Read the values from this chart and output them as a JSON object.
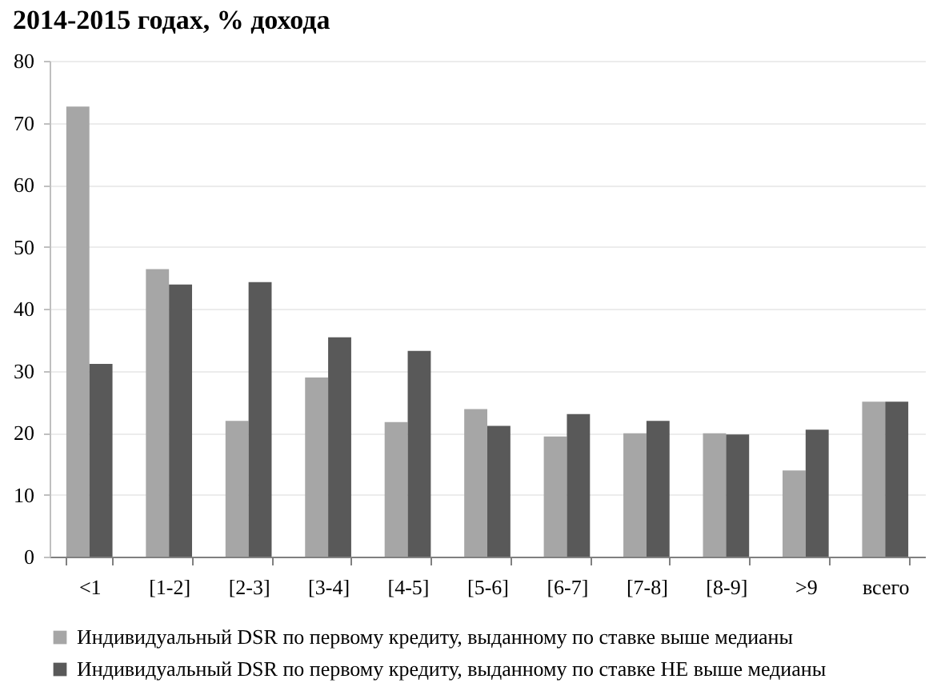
{
  "chart_data": {
    "type": "bar",
    "title": "2014-2015 годах, % дохода",
    "categories": [
      "<1",
      "[1-2]",
      "[2-3]",
      "[3-4]",
      "[4-5]",
      "[5-6]",
      "[6-7]",
      "[7-8]",
      "[8-9]",
      ">9",
      "всего"
    ],
    "series": [
      {
        "name": "Индивидуальный DSR по первому кредиту, выданному по ставке выше медианы",
        "color": "#a6a6a6",
        "values": [
          72.6,
          46.4,
          21.9,
          28.9,
          21.7,
          23.8,
          19.4,
          19.9,
          19.9,
          13.9,
          25.0
        ]
      },
      {
        "name": "Индивидуальный DSR по первому кредиту, выданному по ставке НЕ выше медианы",
        "color": "#595959",
        "values": [
          31.1,
          43.9,
          44.3,
          35.4,
          33.2,
          21.1,
          23.0,
          21.9,
          19.7,
          20.5,
          25.0
        ]
      }
    ],
    "ylim": [
      0,
      80
    ],
    "yticks": [
      0,
      10,
      20,
      30,
      40,
      50,
      60,
      70,
      80
    ],
    "grid": "y",
    "legend": "bottom"
  }
}
